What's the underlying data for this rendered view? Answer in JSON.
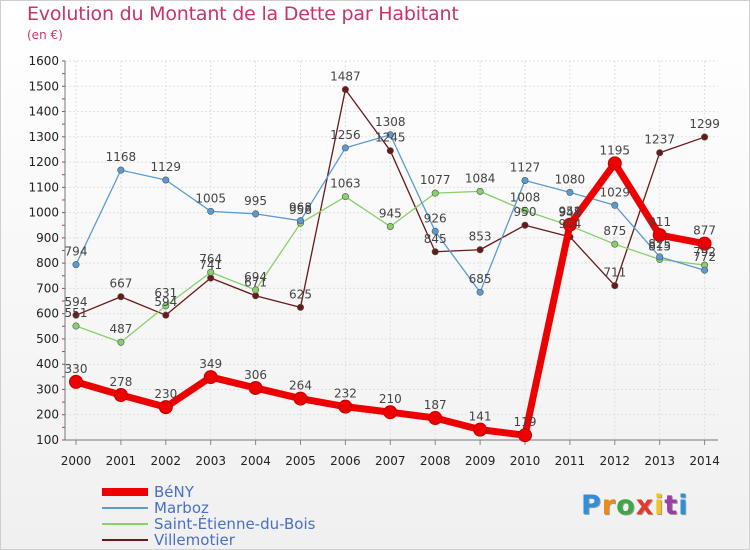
{
  "title": "Evolution du Montant de la Dette par Habitant",
  "unit": "(en €)",
  "logo": {
    "letters": [
      "P",
      "r",
      "o",
      "x",
      "i",
      "t",
      "i"
    ],
    "colors": [
      "#2f8fd8",
      "#f08a17",
      "#3aa845",
      "#e23b2e",
      "#f3c21c",
      "#9a3fa0",
      "#2f8fd8"
    ]
  },
  "chart_data": {
    "type": "line",
    "x": [
      "2000",
      "2001",
      "2002",
      "2003",
      "2004",
      "2005",
      "2006",
      "2007",
      "2008",
      "2009",
      "2010",
      "2011",
      "2012",
      "2013",
      "2014"
    ],
    "yticks": [
      "100",
      "200",
      "300",
      "400",
      "500",
      "600",
      "700",
      "800",
      "900",
      "1000",
      "1100",
      "1200",
      "1300",
      "1400",
      "1500",
      "1600"
    ],
    "ylim": [
      100,
      1600
    ],
    "grid": true,
    "legend_position": "bottom-left",
    "series": [
      {
        "name": "Villemotier",
        "color": "#6b1818",
        "values": [
          594,
          667,
          594,
          741,
          671,
          625,
          1487,
          1245,
          845,
          853,
          950,
          904,
          711,
          1237,
          1299
        ],
        "labels": [
          "594",
          "667",
          "594",
          "741",
          "671",
          "625",
          "1487",
          "1245",
          "845",
          "853",
          "950",
          "904",
          "711",
          "1237",
          "1299"
        ]
      },
      {
        "name": "Saint-Étienne-du-Bois",
        "color": "#88d06a",
        "values": [
          551,
          487,
          631,
          764,
          694,
          958,
          1063,
          945,
          1077,
          1084,
          1008,
          948,
          875,
          815,
          792
        ],
        "labels": [
          "551",
          "487",
          "631",
          "764",
          "694",
          "958",
          "1063",
          "945",
          "1077",
          "1084",
          "1008",
          "948",
          "875",
          "815",
          "792"
        ]
      },
      {
        "name": "Marboz",
        "color": "#5b9bd5",
        "values": [
          794,
          1168,
          1129,
          1005,
          995,
          968,
          1256,
          1308,
          926,
          685,
          1127,
          1080,
          1029,
          825,
          772
        ],
        "labels": [
          "794",
          "1168",
          "1129",
          "1005",
          "995",
          "968",
          "1256",
          "1308",
          "926",
          "685",
          "1127",
          "1080",
          "1029",
          "825",
          "772"
        ]
      },
      {
        "name": "BéNY",
        "color": "#ee0000",
        "values": [
          330,
          278,
          230,
          349,
          306,
          264,
          232,
          210,
          187,
          141,
          119,
          952,
          1195,
          911,
          877
        ],
        "labels": [
          "330",
          "278",
          "230",
          "349",
          "306",
          "264",
          "232",
          "210",
          "187",
          "141",
          "119",
          "952",
          "1195",
          "911",
          "877"
        ]
      }
    ],
    "legend": [
      "BéNY",
      "Marboz",
      "Saint-Étienne-du-Bois",
      "Villemotier"
    ]
  }
}
